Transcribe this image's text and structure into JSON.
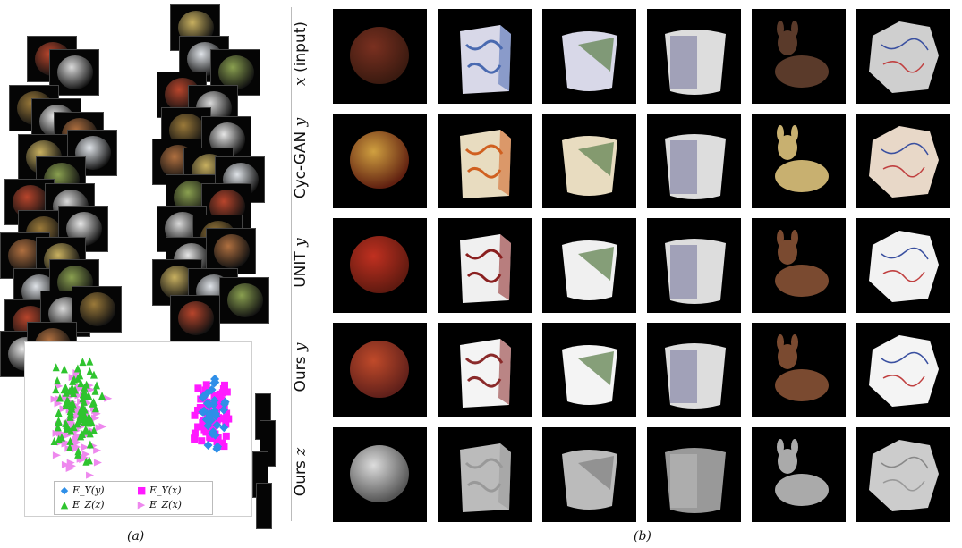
{
  "panel_a": {
    "caption": "(a)",
    "legend": {
      "items": [
        {
          "text": "E_Y(y)",
          "marker": "diamond",
          "color": "#2f8fe8"
        },
        {
          "text": "E_Y(x)",
          "marker": "square",
          "color": "#ff1aff"
        },
        {
          "text": "E_Z(z)",
          "marker": "triangle-up",
          "color": "#2fc42f"
        },
        {
          "text": "E_Z(x)",
          "marker": "triangle-right",
          "color": "#ee88ee"
        }
      ]
    }
  },
  "panel_b": {
    "caption": "(b)",
    "rows": [
      {
        "label_math": "x",
        "label_text": " (input)"
      },
      {
        "label_text": "Cyc-GAN ",
        "label_math": "y"
      },
      {
        "label_text": "UNIT ",
        "label_math": "y"
      },
      {
        "label_text": "Ours ",
        "label_math": "y"
      },
      {
        "label_text": "Ours ",
        "label_math": "z"
      }
    ],
    "objects": [
      "apple",
      "box",
      "cup",
      "cup-striped",
      "deer",
      "crumpled-paper"
    ]
  }
}
